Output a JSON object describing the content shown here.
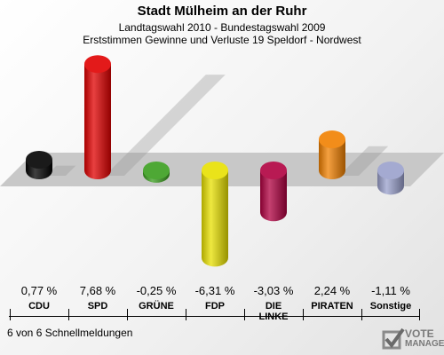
{
  "header": {
    "title": "Stadt Mülheim an der Ruhr",
    "subtitle": "Landtagswahl 2010 - Bundestagswahl 2009",
    "description": "Erststimmen Gewinne und Verluste 19 Speldorf - Nordwest"
  },
  "chart_data": {
    "type": "bar",
    "title": "Stadt Mülheim an der Ruhr",
    "categories": [
      "CDU",
      "SPD",
      "GRÜNE",
      "FDP",
      "DIE LINKE",
      "PIRATEN",
      "Sonstige"
    ],
    "values": [
      0.77,
      7.68,
      -0.25,
      -6.31,
      -3.03,
      2.24,
      -1.11
    ],
    "value_labels": [
      "0,77 %",
      "7,68 %",
      "-0,25 %",
      "-6,31 %",
      "-3,03 %",
      "2,24 %",
      "-1,11 %"
    ],
    "colors": [
      "#000000",
      "#e00000",
      "#3a9e1e",
      "#e8e000",
      "#b00040",
      "#f08000",
      "#9aa0cc"
    ],
    "ylim": [
      -8,
      8
    ],
    "grid": false,
    "legend": "none"
  },
  "footer": {
    "text": "6 von 6 Schnellmeldungen"
  },
  "logo": {
    "line1": "VOTE",
    "line2": "MANAGER",
    "icon": "check-mark-icon"
  }
}
